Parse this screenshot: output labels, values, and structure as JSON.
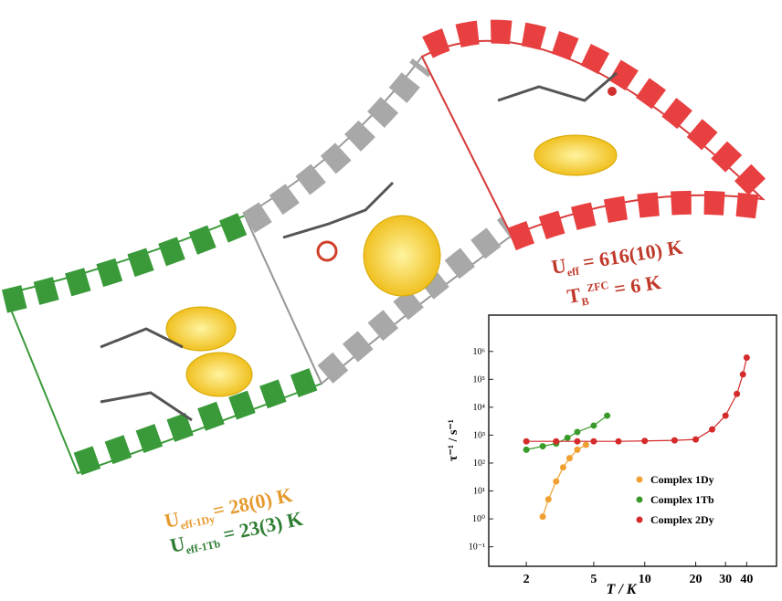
{
  "annotations": [
    {
      "symbol": "U",
      "subscript": "eff",
      "text": " = 616(10) K",
      "color": "#c0392b"
    },
    {
      "symbol": "T",
      "subscript": "B",
      "superscript": "ZFC",
      "text": " = 6 K",
      "color": "#c0392b"
    },
    {
      "symbol": "U",
      "subscript": "eff-1Dy",
      "text": "= 28(0) K",
      "color": "#e69a2e"
    },
    {
      "symbol": "U",
      "subscript": "eff-1Tb",
      "text": " = 23(3) K",
      "color": "#2e7d32"
    }
  ],
  "chart_data": {
    "type": "scatter",
    "log_x": true,
    "log_y": true,
    "xlabel": "T / K",
    "ylabel": "τ⁻¹ / s⁻¹",
    "xlim": [
      1.2,
      60
    ],
    "ylim": [
      0.02,
      20000000
    ],
    "xticks": [
      2,
      5,
      10,
      20,
      30,
      40
    ],
    "yticks": [
      {
        "value": 0.1,
        "label": "10⁻¹"
      },
      {
        "value": 1,
        "label": "10⁰"
      },
      {
        "value": 10,
        "label": "10¹"
      },
      {
        "value": 100,
        "label": "10²"
      },
      {
        "value": 1000,
        "label": "10³"
      },
      {
        "value": 10000,
        "label": "10⁴"
      },
      {
        "value": 100000,
        "label": "10⁵"
      },
      {
        "value": 1000000,
        "label": "10⁶"
      }
    ],
    "series": [
      {
        "name": "Complex 1Dy",
        "color": "#f0a030",
        "x": [
          2.5,
          2.7,
          3.0,
          3.3,
          3.6,
          4.0,
          4.5
        ],
        "values": [
          1.2,
          5,
          22,
          70,
          150,
          300,
          450
        ]
      },
      {
        "name": "Complex 1Tb",
        "color": "#3a9a2a",
        "x": [
          2.0,
          2.5,
          3.0,
          3.5,
          4.0,
          5.0,
          6.0
        ],
        "values": [
          300,
          400,
          500,
          800,
          1300,
          2200,
          5000
        ]
      },
      {
        "name": "Complex 2Dy",
        "color": "#d42a2a",
        "x": [
          2,
          3,
          4,
          5,
          7,
          10,
          15,
          20,
          25,
          30,
          35,
          38,
          40
        ],
        "values": [
          600,
          600,
          600,
          600,
          600,
          620,
          650,
          700,
          1600,
          5000,
          30000,
          150000,
          600000
        ]
      }
    ]
  }
}
